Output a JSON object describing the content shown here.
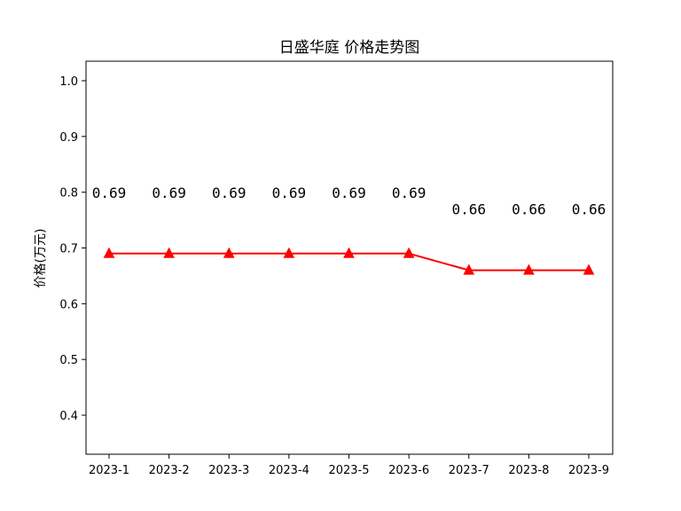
{
  "chart_data": {
    "type": "line",
    "title": "日盛华庭 价格走势图",
    "xlabel": "",
    "ylabel": "价格(万元)",
    "categories": [
      "2023-1",
      "2023-2",
      "2023-3",
      "2023-4",
      "2023-5",
      "2023-6",
      "2023-7",
      "2023-8",
      "2023-9"
    ],
    "series": [
      {
        "values": [
          0.69,
          0.69,
          0.69,
          0.69,
          0.69,
          0.69,
          0.66,
          0.66,
          0.66
        ],
        "color": "#ff0000",
        "marker": "triangle"
      }
    ],
    "data_labels": [
      "0.69",
      "0.69",
      "0.69",
      "0.69",
      "0.69",
      "0.69",
      "0.66",
      "0.66",
      "0.66"
    ],
    "ylim": [
      0.33,
      1.035
    ],
    "yticks": [
      0.4,
      0.5,
      0.6,
      0.7,
      0.8,
      0.9,
      1.0
    ],
    "ytick_labels": [
      "0.4",
      "0.5",
      "0.6",
      "0.7",
      "0.8",
      "0.9",
      "1.0"
    ],
    "grid": false,
    "legend": "none"
  }
}
